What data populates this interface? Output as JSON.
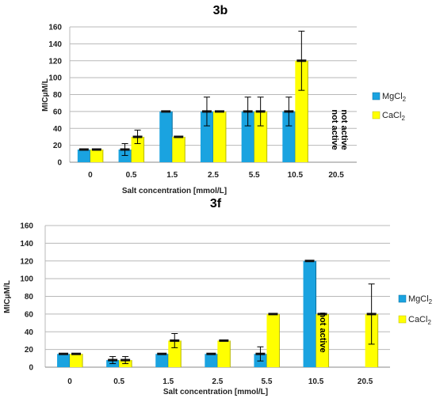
{
  "chart_data": [
    {
      "type": "bar",
      "title": "3b",
      "xlabel": "Salt concentration [mmol/L]",
      "ylabel": "MICμM/L",
      "ylim": [
        0,
        160
      ],
      "yticks": [
        0,
        20,
        40,
        60,
        80,
        100,
        120,
        140,
        160
      ],
      "grid": true,
      "legend_position": "right",
      "categories": [
        "0",
        "0.5",
        "1.5",
        "2.5",
        "5.5",
        "10.5",
        "20.5"
      ],
      "series": [
        {
          "name": "MgCl",
          "subscript": "2",
          "color": "#1aa3e0",
          "values": [
            15,
            15,
            60,
            60,
            60,
            60,
            null
          ],
          "errors": [
            0,
            7,
            0,
            17,
            17,
            17,
            null
          ]
        },
        {
          "name": "CaCl",
          "subscript": "2",
          "color": "#ffff00",
          "values": [
            15,
            30,
            30,
            60,
            60,
            120,
            null
          ],
          "errors": [
            0,
            8,
            0,
            0,
            17,
            35,
            null
          ]
        }
      ],
      "annotations": [
        "not active",
        "not active"
      ]
    },
    {
      "type": "bar",
      "title": "3f",
      "xlabel": "Salt concentration [mmol/L]",
      "ylabel": "MICμM/L",
      "ylim": [
        0,
        160
      ],
      "yticks": [
        0,
        20,
        40,
        60,
        80,
        100,
        120,
        140,
        160
      ],
      "grid": true,
      "legend_position": "right",
      "categories": [
        "0",
        "0.5",
        "1.5",
        "2.5",
        "5.5",
        "10.5",
        "20.5"
      ],
      "series": [
        {
          "name": "MgCl",
          "subscript": "2",
          "color": "#1aa3e0",
          "values": [
            15,
            8,
            15,
            15,
            15,
            120,
            null
          ],
          "errors": [
            0,
            4,
            0,
            0,
            8,
            0,
            null
          ]
        },
        {
          "name": "CaCl",
          "subscript": "2",
          "color": "#ffff00",
          "values": [
            15,
            8,
            30,
            30,
            60,
            60,
            60
          ],
          "errors": [
            0,
            4,
            8,
            0,
            0,
            0,
            34
          ]
        }
      ],
      "annotations": [
        "not active"
      ]
    }
  ]
}
